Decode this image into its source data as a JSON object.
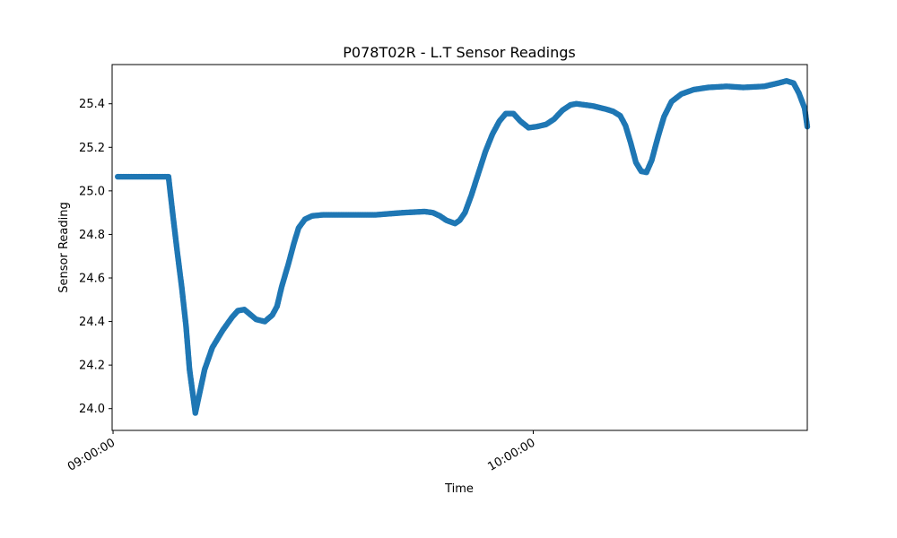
{
  "chart_data": {
    "type": "scatter",
    "title": "P078T02R - L.T Sensor Readings",
    "xlabel": "Time",
    "ylabel": "Sensor Reading",
    "xlim": [
      "08:59:52",
      "10:39:08"
    ],
    "ylim": [
      23.9,
      25.58
    ],
    "xticks": [
      {
        "label": "09:00:00",
        "time": "09:00:00"
      },
      {
        "label": "10:00:00",
        "time": "10:00:00"
      }
    ],
    "yticks": [
      24.0,
      24.2,
      24.4,
      24.6,
      24.8,
      25.0,
      25.2,
      25.4
    ],
    "grid": false,
    "marker_color": "#1f77b4",
    "series": [
      {
        "points": [
          [
            "09:00:40",
            25.065
          ],
          [
            "09:04:00",
            25.065
          ],
          [
            "09:07:55",
            25.065
          ],
          [
            "09:08:30",
            24.9
          ],
          [
            "09:09:10",
            24.72
          ],
          [
            "09:09:50",
            24.55
          ],
          [
            "09:10:25",
            24.38
          ],
          [
            "09:10:55",
            24.18
          ],
          [
            "09:11:45",
            23.98
          ],
          [
            "09:12:25",
            24.08
          ],
          [
            "09:13:05",
            24.18
          ],
          [
            "09:14:10",
            24.28
          ],
          [
            "09:15:40",
            24.36
          ],
          [
            "09:17:00",
            24.42
          ],
          [
            "09:17:50",
            24.45
          ],
          [
            "09:18:45",
            24.455
          ],
          [
            "09:20:25",
            24.41
          ],
          [
            "09:21:40",
            24.4
          ],
          [
            "09:22:45",
            24.43
          ],
          [
            "09:23:25",
            24.47
          ],
          [
            "09:24:05",
            24.56
          ],
          [
            "09:25:00",
            24.66
          ],
          [
            "09:25:50",
            24.76
          ],
          [
            "09:26:30",
            24.83
          ],
          [
            "09:27:25",
            24.87
          ],
          [
            "09:28:25",
            24.885
          ],
          [
            "09:30:00",
            24.89
          ],
          [
            "09:33:00",
            24.89
          ],
          [
            "09:37:30",
            24.89
          ],
          [
            "09:41:30",
            24.9
          ],
          [
            "09:44:30",
            24.905
          ],
          [
            "09:45:40",
            24.9
          ],
          [
            "09:46:40",
            24.885
          ],
          [
            "09:47:35",
            24.865
          ],
          [
            "09:48:50",
            24.85
          ],
          [
            "09:49:30",
            24.865
          ],
          [
            "09:50:15",
            24.9
          ],
          [
            "09:51:10",
            24.98
          ],
          [
            "09:52:10",
            25.08
          ],
          [
            "09:53:10",
            25.18
          ],
          [
            "09:54:10",
            25.26
          ],
          [
            "09:55:10",
            25.32
          ],
          [
            "09:56:05",
            25.355
          ],
          [
            "09:57:10",
            25.355
          ],
          [
            "09:58:10",
            25.32
          ],
          [
            "09:59:20",
            25.29
          ],
          [
            "10:00:30",
            25.295
          ],
          [
            "10:01:50",
            25.305
          ],
          [
            "10:03:00",
            25.33
          ],
          [
            "10:04:10",
            25.37
          ],
          [
            "10:05:20",
            25.395
          ],
          [
            "10:06:10",
            25.4
          ],
          [
            "10:08:30",
            25.39
          ],
          [
            "10:10:25",
            25.375
          ],
          [
            "10:11:25",
            25.365
          ],
          [
            "10:12:25",
            25.345
          ],
          [
            "10:13:10",
            25.3
          ],
          [
            "10:13:55",
            25.22
          ],
          [
            "10:14:40",
            25.13
          ],
          [
            "10:15:25",
            25.09
          ],
          [
            "10:16:10",
            25.085
          ],
          [
            "10:16:55",
            25.14
          ],
          [
            "10:17:50",
            25.25
          ],
          [
            "10:18:40",
            25.34
          ],
          [
            "10:19:45",
            25.41
          ],
          [
            "10:21:10",
            25.445
          ],
          [
            "10:22:55",
            25.465
          ],
          [
            "10:25:00",
            25.475
          ],
          [
            "10:27:40",
            25.48
          ],
          [
            "10:30:00",
            25.475
          ],
          [
            "10:33:00",
            25.48
          ],
          [
            "10:35:00",
            25.495
          ],
          [
            "10:36:10",
            25.505
          ],
          [
            "10:37:10",
            25.495
          ],
          [
            "10:37:55",
            25.45
          ],
          [
            "10:38:45",
            25.38
          ],
          [
            "10:39:08",
            25.295
          ]
        ]
      }
    ]
  }
}
